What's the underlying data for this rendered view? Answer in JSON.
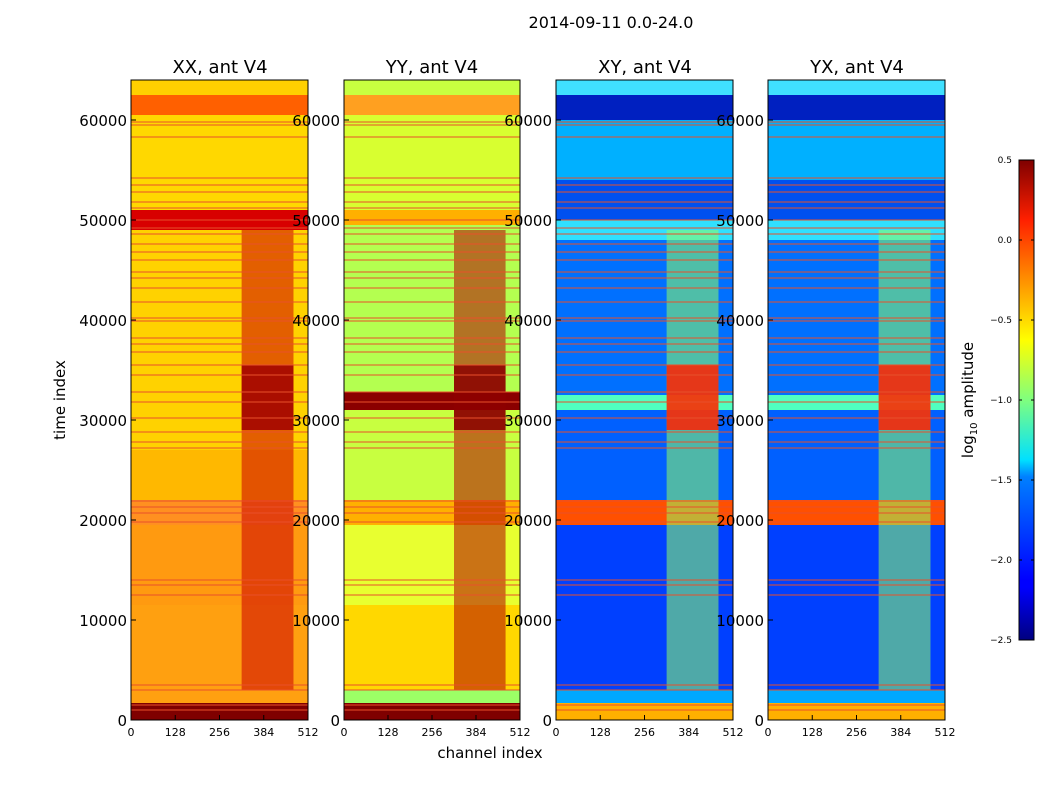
{
  "chart_data": {
    "type": "heatmap",
    "suptitle": "2014-09-11 0.0-24.0",
    "xlabel": "channel index",
    "ylabel": "time index",
    "xticks": [
      0,
      128,
      256,
      384,
      512
    ],
    "xtick_labels": [
      "0",
      "128",
      "256",
      "384",
      "512"
    ],
    "yticks": [
      0,
      10000,
      20000,
      30000,
      40000,
      50000,
      60000
    ],
    "ytick_labels": [
      "0",
      "10000",
      "20000",
      "30000",
      "40000",
      "50000",
      "60000"
    ],
    "xlim": [
      0,
      512
    ],
    "ylim": [
      0,
      64000
    ],
    "panels": [
      {
        "title": "XX, ant V4",
        "key": "XX"
      },
      {
        "title": "YY, ant V4",
        "key": "YY"
      },
      {
        "title": "XY, ant V4",
        "key": "XY"
      },
      {
        "title": "YX, ant V4",
        "key": "YX"
      }
    ],
    "colorbar": {
      "label_prefix": "log",
      "label_sub": "10",
      "label_suffix": " amplitude",
      "colormap": "jet",
      "vmin": -2.5,
      "vmax": 0.5,
      "ticks": [
        0.5,
        0.0,
        -0.5,
        -1.0,
        -1.5,
        -2.0,
        -2.5
      ],
      "tick_labels": [
        "0.5",
        "0.0",
        "−0.5",
        "−1.0",
        "−1.5",
        "−2.0",
        "−2.5"
      ]
    },
    "flagged_time_rows": [
      1000,
      1500,
      3000,
      3500,
      12500,
      13500,
      14000,
      19800,
      20700,
      21300,
      21900,
      27200,
      27800,
      28800,
      30200,
      31800,
      32800,
      34500,
      35500,
      36800,
      37600,
      38200,
      39900,
      40200,
      41800,
      43200,
      44200,
      44800,
      46000,
      46800,
      47600,
      48600,
      49200,
      50000,
      51200,
      51800,
      52800,
      53500,
      54200,
      58300,
      59500,
      59800
    ],
    "bright_channel_band": [
      320,
      470
    ],
    "colors": {
      "flag_line": "#e8502a",
      "frame": "#000000"
    }
  }
}
